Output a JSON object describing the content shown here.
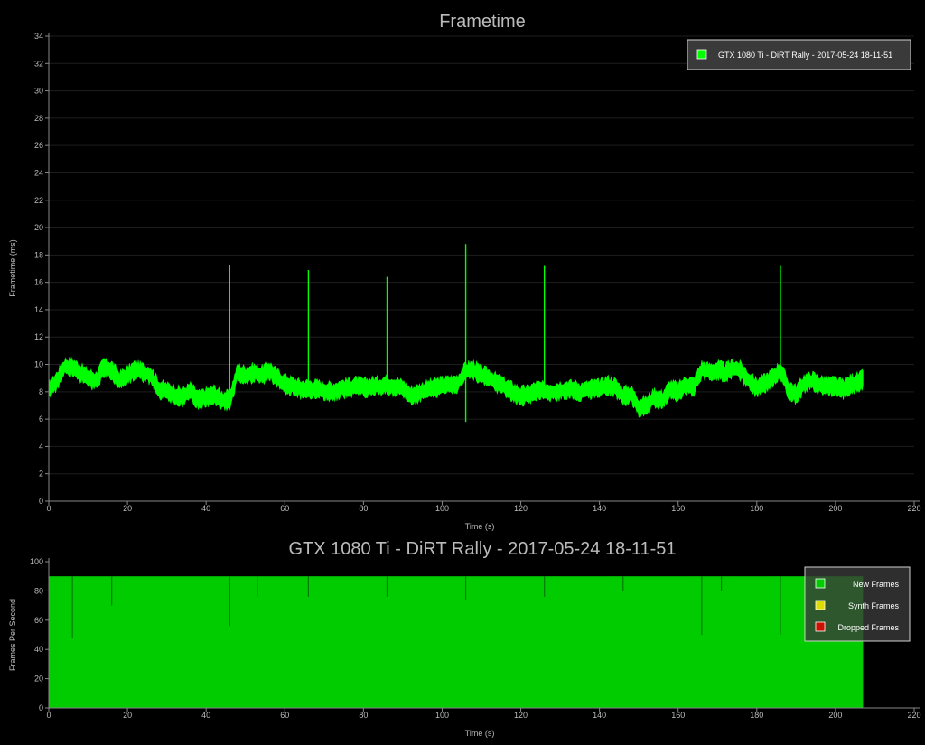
{
  "chart_data": [
    {
      "type": "line",
      "title": "Frametime",
      "xlabel": "Time (s)",
      "ylabel": "Frametime (ms)",
      "xlim": [
        0,
        220
      ],
      "ylim": [
        0,
        34
      ],
      "xticks": [
        0,
        20,
        40,
        60,
        80,
        100,
        120,
        140,
        160,
        180,
        200,
        220
      ],
      "yticks": [
        0,
        2,
        4,
        6,
        8,
        10,
        12,
        14,
        16,
        18,
        20,
        22,
        24,
        26,
        28,
        30,
        32,
        34
      ],
      "grid": true,
      "legend_position": "top-right",
      "series": [
        {
          "name": "GTX 1080 Ti - DiRT Rally - 2017-05-24 18-11-51",
          "color": "#00ff00",
          "x": [
            0,
            2,
            4,
            6,
            8,
            10,
            12,
            14,
            16,
            18,
            20,
            22,
            24,
            26,
            28,
            30,
            32,
            34,
            36,
            38,
            40,
            42,
            44,
            46,
            48,
            50,
            52,
            54,
            56,
            58,
            60,
            62,
            64,
            66,
            68,
            70,
            72,
            74,
            76,
            78,
            80,
            82,
            84,
            86,
            88,
            90,
            92,
            94,
            96,
            98,
            100,
            102,
            104,
            106,
            108,
            110,
            112,
            114,
            116,
            118,
            120,
            122,
            124,
            126,
            128,
            130,
            132,
            134,
            136,
            138,
            140,
            142,
            144,
            146,
            148,
            150,
            152,
            154,
            156,
            158,
            160,
            162,
            164,
            166,
            168,
            170,
            172,
            174,
            176,
            178,
            180,
            182,
            184,
            186,
            188,
            190,
            192,
            194,
            196,
            198,
            200,
            202,
            204,
            206,
            207
          ],
          "values": [
            8.0,
            8.8,
            9.8,
            9.8,
            9.4,
            9.0,
            8.8,
            9.8,
            9.6,
            8.8,
            9.2,
            9.6,
            9.4,
            9.2,
            8.2,
            8.0,
            7.8,
            7.6,
            8.0,
            7.4,
            7.6,
            7.8,
            7.4,
            7.4,
            9.4,
            9.2,
            9.4,
            9.2,
            9.6,
            9.0,
            8.6,
            8.4,
            8.2,
            8.2,
            8.2,
            8.1,
            8.0,
            8.2,
            8.3,
            8.4,
            8.3,
            8.4,
            8.4,
            8.5,
            8.4,
            8.2,
            7.7,
            7.9,
            8.1,
            8.3,
            8.4,
            8.5,
            8.6,
            9.5,
            9.6,
            9.2,
            9.0,
            8.6,
            8.3,
            8.0,
            7.7,
            7.8,
            8.1,
            8.0,
            8.0,
            8.1,
            8.2,
            8.1,
            8.0,
            8.2,
            8.2,
            8.5,
            8.3,
            7.7,
            7.8,
            6.9,
            7.0,
            7.6,
            7.4,
            8.2,
            8.0,
            8.5,
            8.4,
            9.6,
            9.4,
            9.6,
            9.4,
            9.7,
            9.5,
            8.8,
            8.3,
            8.6,
            9.0,
            9.6,
            8.2,
            7.8,
            8.6,
            8.8,
            8.5,
            8.4,
            8.4,
            8.2,
            8.6,
            8.7,
            8.9
          ],
          "spikes": [
            {
              "x": 46,
              "high": 17.3
            },
            {
              "x": 66,
              "high": 16.9
            },
            {
              "x": 86,
              "high": 16.4
            },
            {
              "x": 106,
              "high": 18.8,
              "low": 5.8
            },
            {
              "x": 126,
              "high": 17.2
            },
            {
              "x": 186,
              "high": 17.2
            }
          ]
        }
      ]
    },
    {
      "type": "area",
      "title": "GTX 1080 Ti - DiRT Rally - 2017-05-24 18-11-51",
      "xlabel": "Time (s)",
      "ylabel": "Frames Per Second",
      "xlim": [
        0,
        220
      ],
      "ylim": [
        0,
        100
      ],
      "xticks": [
        0,
        20,
        40,
        60,
        80,
        100,
        120,
        140,
        160,
        180,
        200,
        220
      ],
      "yticks": [
        0,
        20,
        40,
        60,
        80,
        100
      ],
      "grid": false,
      "legend_position": "top-right",
      "series": [
        {
          "name": "New Frames",
          "color": "#00cc00",
          "x": [
            0,
            207
          ],
          "values": [
            90,
            90
          ]
        },
        {
          "name": "Synth Frames",
          "color": "#dddd00",
          "x": [
            0,
            207
          ],
          "values": [
            0,
            0
          ]
        },
        {
          "name": "Dropped Frames",
          "color": "#cc1100",
          "x": [
            0,
            207
          ],
          "values": [
            0,
            0
          ]
        }
      ],
      "dips": [
        {
          "x": 6,
          "low": 48
        },
        {
          "x": 16,
          "low": 70
        },
        {
          "x": 46,
          "low": 56
        },
        {
          "x": 53,
          "low": 76
        },
        {
          "x": 66,
          "low": 76
        },
        {
          "x": 86,
          "low": 76
        },
        {
          "x": 106,
          "low": 74
        },
        {
          "x": 126,
          "low": 76
        },
        {
          "x": 146,
          "low": 80
        },
        {
          "x": 166,
          "low": 50
        },
        {
          "x": 171,
          "low": 80
        },
        {
          "x": 186,
          "low": 50
        }
      ]
    }
  ]
}
